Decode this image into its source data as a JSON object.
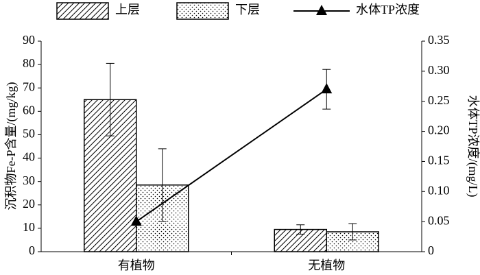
{
  "chart_data": {
    "type": "bar",
    "categories": [
      "有植物",
      "无植物"
    ],
    "series": [
      {
        "name": "上层",
        "color": "#000000",
        "pattern": "hatch",
        "values": [
          65,
          9.5
        ],
        "errors": [
          15.5,
          2
        ]
      },
      {
        "name": "下层",
        "color": "#000000",
        "pattern": "dots",
        "values": [
          28.5,
          8.5
        ],
        "errors": [
          15.5,
          3.5
        ]
      },
      {
        "name": "水体TP浓度",
        "type": "line",
        "axis": "y2",
        "color": "#000000",
        "marker": "triangle",
        "values": [
          0.05,
          0.27
        ],
        "errors": [
          null,
          0.033
        ]
      }
    ],
    "ylabel": "沉积物Fe-P含量/(mg/kg)",
    "y2label": "水体TP浓度/(mg/L)",
    "ylim": [
      0,
      90
    ],
    "yticks": [
      0,
      10,
      20,
      30,
      40,
      50,
      60,
      70,
      80,
      90
    ],
    "y2lim": [
      0,
      0.35
    ],
    "y2ticks": [
      0,
      0.05,
      {
        "value": 0.1,
        "label": "0.10"
      },
      0.15,
      {
        "value": 0.2,
        "label": "0.20"
      },
      0.25,
      {
        "value": 0.3,
        "label": "0.30"
      },
      0.35
    ],
    "legend": "top",
    "grid": false
  }
}
